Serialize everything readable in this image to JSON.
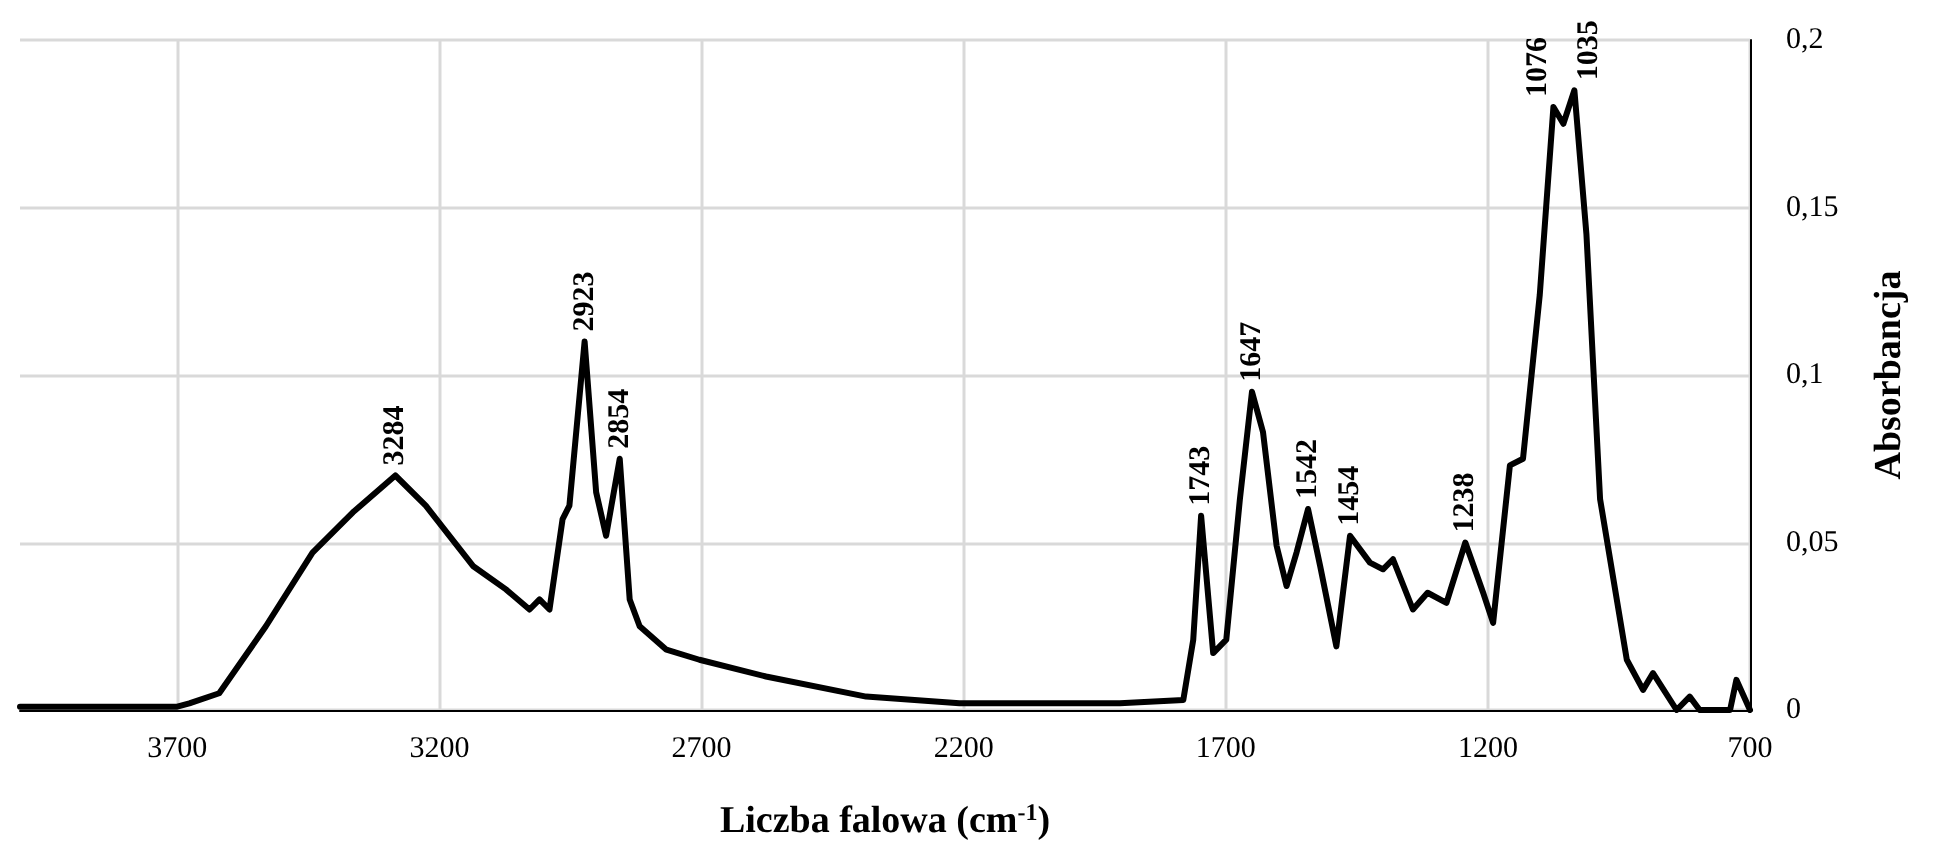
{
  "chart_data": {
    "type": "line",
    "xlabel": "Liczba falowa (cm$^{-1}$)",
    "ylabel": "Absorbancja",
    "xlim": [
      4000,
      700
    ],
    "xticks": [
      3700,
      3200,
      2700,
      2200,
      1700,
      1200,
      700
    ],
    "ylim": [
      0,
      0.2
    ],
    "yticks": [
      {
        "value": 0,
        "label": "0"
      },
      {
        "value": 0.05,
        "label": "0,05"
      },
      {
        "value": 0.1,
        "label": "0,1"
      },
      {
        "value": 0.15,
        "label": "0,15"
      },
      {
        "value": 0.2,
        "label": "0,2"
      }
    ],
    "grid": true,
    "marker": "none",
    "line_style": "solid",
    "series": [
      {
        "color": "#000000",
        "x": [
          4000,
          3850,
          3700,
          3677,
          3620,
          3531,
          3442,
          3365,
          3284,
          3226,
          3136,
          3073,
          3028,
          3009,
          2990,
          2965,
          2952,
          2923,
          2901,
          2882,
          2856,
          2837,
          2818,
          2767,
          2704,
          2577,
          2386,
          2208,
          2000,
          1902,
          1781,
          1762,
          1747,
          1724,
          1699,
          1673,
          1650,
          1629,
          1603,
          1584,
          1565,
          1543,
          1520,
          1489,
          1463,
          1425,
          1400,
          1381,
          1343,
          1315,
          1279,
          1243,
          1209,
          1190,
          1158,
          1133,
          1101,
          1075,
          1056,
          1035,
          1012,
          986,
          935,
          904,
          885,
          840,
          815,
          796,
          738,
          726,
          700
        ],
        "values": [
          0.001,
          0.001,
          0.001,
          0.002,
          0.005,
          0.025,
          0.047,
          0.059,
          0.07,
          0.061,
          0.043,
          0.036,
          0.03,
          0.033,
          0.03,
          0.057,
          0.061,
          0.11,
          0.065,
          0.052,
          0.075,
          0.033,
          0.025,
          0.018,
          0.015,
          0.01,
          0.004,
          0.002,
          0.002,
          0.002,
          0.003,
          0.021,
          0.058,
          0.017,
          0.021,
          0.063,
          0.095,
          0.083,
          0.049,
          0.037,
          0.047,
          0.06,
          0.043,
          0.019,
          0.052,
          0.044,
          0.042,
          0.045,
          0.03,
          0.035,
          0.032,
          0.05,
          0.035,
          0.026,
          0.073,
          0.075,
          0.124,
          0.18,
          0.175,
          0.185,
          0.142,
          0.063,
          0.015,
          0.006,
          0.011,
          0,
          0.004,
          0,
          0,
          0.009,
          0
        ]
      }
    ],
    "annotations": [
      {
        "text": "3284",
        "x": 3284,
        "y": 0.07
      },
      {
        "text": "2923",
        "x": 2923,
        "y": 0.11
      },
      {
        "text": "2854",
        "x": 2856,
        "y": 0.075
      },
      {
        "text": "1743",
        "x": 1747,
        "y": 0.058
      },
      {
        "text": "1647",
        "x": 1650,
        "y": 0.095
      },
      {
        "text": "1542",
        "x": 1543,
        "y": 0.06
      },
      {
        "text": "1454",
        "x": 1463,
        "y": 0.052
      },
      {
        "text": "1238",
        "x": 1243,
        "y": 0.05
      },
      {
        "text": "1076",
        "x": 1075,
        "y": 0.18
      },
      {
        "text": "1035",
        "x": 1035,
        "y": 0.185
      }
    ]
  }
}
